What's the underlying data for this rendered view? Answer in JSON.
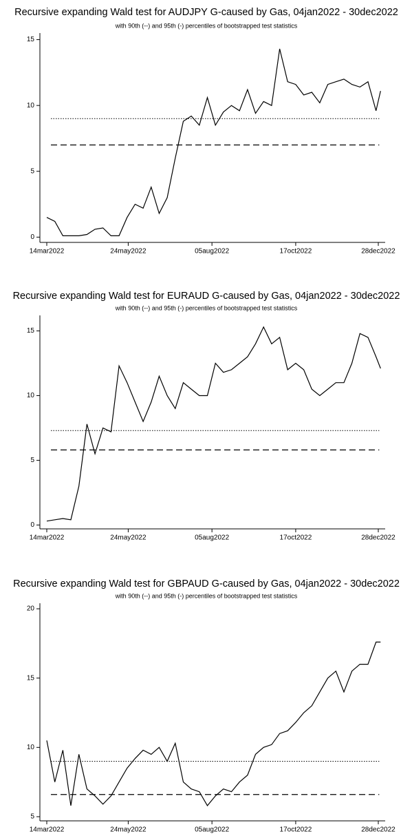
{
  "chart_data": [
    {
      "type": "line",
      "title": "Recursive expanding Wald test for AUDJPY G-caused by Gas, 04jan2022 - 30dec2022",
      "subtitle": "with 90th (--) and 95th (-) percentiles of bootstrapped test statistics",
      "x": [
        "2022-03-14",
        "2022-03-21",
        "2022-03-28",
        "2022-04-04",
        "2022-04-11",
        "2022-04-18",
        "2022-04-25",
        "2022-05-02",
        "2022-05-09",
        "2022-05-16",
        "2022-05-23",
        "2022-05-30",
        "2022-06-06",
        "2022-06-13",
        "2022-06-20",
        "2022-06-27",
        "2022-07-04",
        "2022-07-11",
        "2022-07-18",
        "2022-07-25",
        "2022-08-01",
        "2022-08-08",
        "2022-08-15",
        "2022-08-22",
        "2022-08-29",
        "2022-09-05",
        "2022-09-12",
        "2022-09-19",
        "2022-09-26",
        "2022-10-03",
        "2022-10-10",
        "2022-10-17",
        "2022-10-24",
        "2022-10-31",
        "2022-11-07",
        "2022-11-14",
        "2022-11-21",
        "2022-11-28",
        "2022-12-05",
        "2022-12-12",
        "2022-12-19",
        "2022-12-26",
        "2022-12-30"
      ],
      "values": [
        1.5,
        1.2,
        0.1,
        0.1,
        0.1,
        0.2,
        0.6,
        0.7,
        0.1,
        0.1,
        1.5,
        2.5,
        2.2,
        3.8,
        1.8,
        3.0,
        6.0,
        8.8,
        9.2,
        8.5,
        10.6,
        8.5,
        9.5,
        10.0,
        9.6,
        11.2,
        9.4,
        10.3,
        10.0,
        14.3,
        11.8,
        11.6,
        10.8,
        11.0,
        10.2,
        11.6,
        11.8,
        12.0,
        11.6,
        11.4,
        11.8,
        9.6,
        11.1
      ],
      "color": "#000000",
      "reference_lines": [
        {
          "value": 9.0,
          "dash": "dotted"
        },
        {
          "value": 7.0,
          "dash": "dashed"
        }
      ],
      "xlim": [
        "2022-03-08",
        "2023-01-03"
      ],
      "xticks": [
        {
          "value": "2022-03-14",
          "label": "14mar2022"
        },
        {
          "value": "2022-05-24",
          "label": "24may2022"
        },
        {
          "value": "2022-08-05",
          "label": "05aug2022"
        },
        {
          "value": "2022-10-17",
          "label": "17oct2022"
        },
        {
          "value": "2022-12-28",
          "label": "28dec2022"
        }
      ],
      "ylim": [
        -0.4,
        15.5
      ],
      "yticks": [
        0,
        5,
        10,
        15
      ]
    },
    {
      "type": "line",
      "title": "Recursive expanding Wald test for EURAUD G-caused by Gas, 04jan2022 - 30dec2022",
      "subtitle": "with 90th (--) and 95th (-) percentiles of bootstrapped test statistics",
      "x": [
        "2022-03-14",
        "2022-03-21",
        "2022-03-28",
        "2022-04-04",
        "2022-04-11",
        "2022-04-18",
        "2022-04-25",
        "2022-05-02",
        "2022-05-09",
        "2022-05-16",
        "2022-05-23",
        "2022-05-30",
        "2022-06-06",
        "2022-06-13",
        "2022-06-20",
        "2022-06-27",
        "2022-07-04",
        "2022-07-11",
        "2022-07-18",
        "2022-07-25",
        "2022-08-01",
        "2022-08-08",
        "2022-08-15",
        "2022-08-22",
        "2022-08-29",
        "2022-09-05",
        "2022-09-12",
        "2022-09-19",
        "2022-09-26",
        "2022-10-03",
        "2022-10-10",
        "2022-10-17",
        "2022-10-24",
        "2022-10-31",
        "2022-11-07",
        "2022-11-14",
        "2022-11-21",
        "2022-11-28",
        "2022-12-05",
        "2022-12-12",
        "2022-12-19",
        "2022-12-26",
        "2022-12-30"
      ],
      "values": [
        0.3,
        0.4,
        0.5,
        0.4,
        3.0,
        7.8,
        5.5,
        7.5,
        7.2,
        12.3,
        11.0,
        9.5,
        8.0,
        9.5,
        11.5,
        10.0,
        9.0,
        11.0,
        10.5,
        10.0,
        10.0,
        12.5,
        11.8,
        12.0,
        12.5,
        13.0,
        14.0,
        15.3,
        14.0,
        14.5,
        12.0,
        12.5,
        12.0,
        10.5,
        10.0,
        10.5,
        11.0,
        11.0,
        12.5,
        14.8,
        14.5,
        13.0,
        12.1
      ],
      "color": "#000000",
      "reference_lines": [
        {
          "value": 7.3,
          "dash": "dotted"
        },
        {
          "value": 5.8,
          "dash": "dashed"
        }
      ],
      "xlim": [
        "2022-03-08",
        "2023-01-03"
      ],
      "xticks": [
        {
          "value": "2022-03-14",
          "label": "14mar2022"
        },
        {
          "value": "2022-05-24",
          "label": "24may2022"
        },
        {
          "value": "2022-08-05",
          "label": "05aug2022"
        },
        {
          "value": "2022-10-17",
          "label": "17oct2022"
        },
        {
          "value": "2022-12-28",
          "label": "28dec2022"
        }
      ],
      "ylim": [
        -0.3,
        16.2
      ],
      "yticks": [
        0,
        5,
        10,
        15
      ]
    },
    {
      "type": "line",
      "title": "Recursive expanding Wald test for GBPAUD G-caused by Gas, 04jan2022 - 30dec2022",
      "subtitle": "with 90th (--) and 95th (-) percentiles of bootstrapped test statistics",
      "x": [
        "2022-03-14",
        "2022-03-21",
        "2022-03-28",
        "2022-04-04",
        "2022-04-11",
        "2022-04-18",
        "2022-04-25",
        "2022-05-02",
        "2022-05-09",
        "2022-05-16",
        "2022-05-23",
        "2022-05-30",
        "2022-06-06",
        "2022-06-13",
        "2022-06-20",
        "2022-06-27",
        "2022-07-04",
        "2022-07-11",
        "2022-07-18",
        "2022-07-25",
        "2022-08-01",
        "2022-08-08",
        "2022-08-15",
        "2022-08-22",
        "2022-08-29",
        "2022-09-05",
        "2022-09-12",
        "2022-09-19",
        "2022-09-26",
        "2022-10-03",
        "2022-10-10",
        "2022-10-17",
        "2022-10-24",
        "2022-10-31",
        "2022-11-07",
        "2022-11-14",
        "2022-11-21",
        "2022-11-28",
        "2022-12-05",
        "2022-12-12",
        "2022-12-19",
        "2022-12-26",
        "2022-12-30"
      ],
      "values": [
        10.5,
        7.5,
        9.8,
        5.8,
        9.5,
        7.0,
        6.5,
        5.9,
        6.5,
        7.5,
        8.5,
        9.2,
        9.8,
        9.5,
        10.0,
        9.0,
        10.3,
        7.5,
        7.0,
        6.8,
        5.8,
        6.5,
        7.0,
        6.8,
        7.5,
        8.0,
        9.5,
        10.0,
        10.2,
        11.0,
        11.2,
        11.8,
        12.5,
        13.0,
        14.0,
        15.0,
        15.5,
        14.0,
        15.5,
        16.0,
        16.0,
        17.6,
        17.6
      ],
      "color": "#000000",
      "reference_lines": [
        {
          "value": 9.0,
          "dash": "dotted"
        },
        {
          "value": 6.6,
          "dash": "dashed"
        }
      ],
      "xlim": [
        "2022-03-08",
        "2023-01-03"
      ],
      "xticks": [
        {
          "value": "2022-03-14",
          "label": "14mar2022"
        },
        {
          "value": "2022-05-24",
          "label": "24may2022"
        },
        {
          "value": "2022-08-05",
          "label": "05aug2022"
        },
        {
          "value": "2022-10-17",
          "label": "17oct2022"
        },
        {
          "value": "2022-12-28",
          "label": "28dec2022"
        }
      ],
      "ylim": [
        4.7,
        20.4
      ],
      "yticks": [
        5,
        10,
        15,
        20
      ]
    }
  ]
}
